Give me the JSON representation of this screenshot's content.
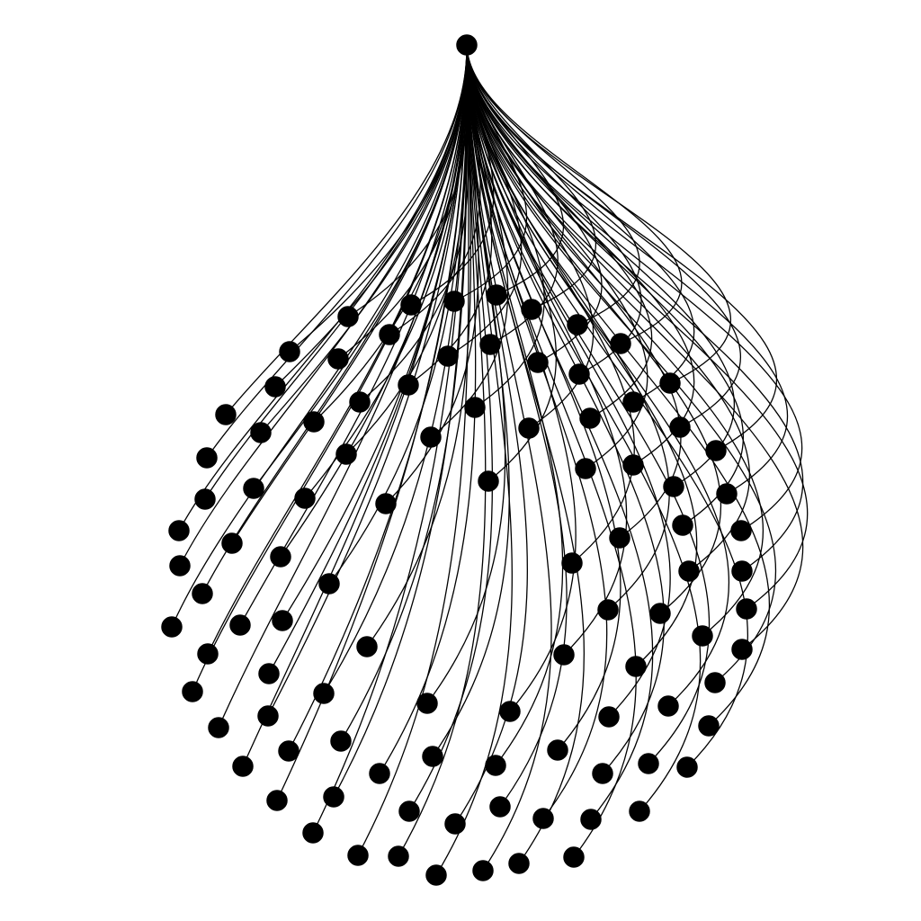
{
  "diagram": {
    "type": "star-graph",
    "description_visible_text": [],
    "root": {
      "name": "root"
    },
    "leaf_count": 120,
    "edge_style": "curved",
    "colors": {
      "background": "#ffffff",
      "node_fill": "#000000",
      "edge_stroke": "#000000"
    }
  }
}
